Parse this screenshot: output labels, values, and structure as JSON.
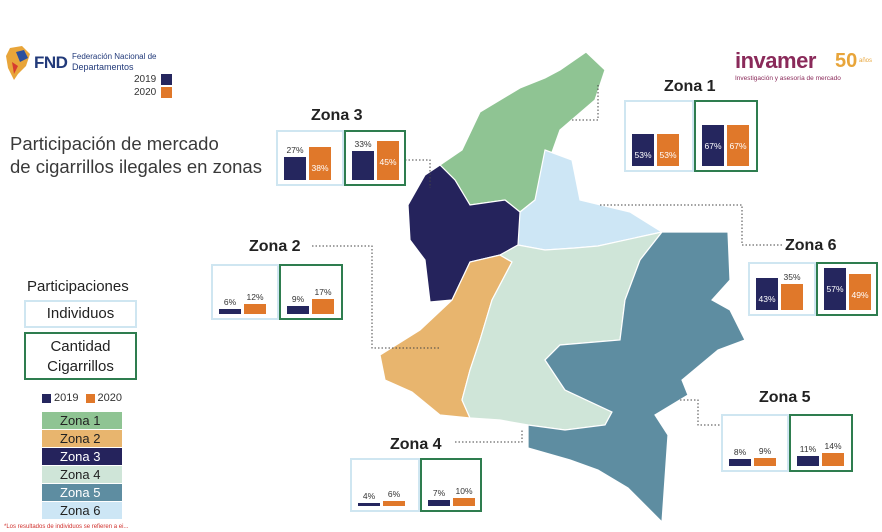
{
  "header": {
    "fnd_logo": "FND",
    "fnd_line1": "Federación Nacional de",
    "fnd_line2": "Departamentos",
    "year_2019": "2019",
    "year_2020": "2020",
    "invamer_logo": "invamer",
    "invamer_tagline": "Investigación y asesoría de mercado",
    "invamer_50": "50",
    "invamer_anos": "años"
  },
  "title_line1": "Participación de mercado",
  "title_line2": "de cigarrillos ilegales en zonas",
  "legend": {
    "heading": "Participaciones",
    "individuos": "Individuos",
    "cantidad_line1": "Cantidad",
    "cantidad_line2": "Cigarrillos",
    "year_2019": "2019",
    "year_2020": "2020",
    "zones": [
      "Zona 1",
      "Zona 2",
      "Zona 3",
      "Zona 4",
      "Zona 5",
      "Zona 6"
    ]
  },
  "colors": {
    "c2019": "#25265e",
    "c2020": "#e0782a",
    "zona1": "#8fc493",
    "zona2": "#e8b56e",
    "zona3": "#25235c",
    "zona4": "#cfe5d8",
    "zona5": "#5e8da1",
    "zona6": "#cde6f5"
  },
  "footnote": "*Los resultados de individuos se refieren a ei...",
  "chart_data": [
    {
      "type": "bar",
      "zone": "Zona 1",
      "metric": "Individuos",
      "categories": [
        "2019",
        "2020"
      ],
      "values": [
        53,
        53
      ],
      "labels": [
        "53%",
        "53%"
      ]
    },
    {
      "type": "bar",
      "zone": "Zona 1",
      "metric": "Cantidad Cigarrillos",
      "categories": [
        "2019",
        "2020"
      ],
      "values": [
        67,
        67
      ],
      "labels": [
        "67%",
        "67%"
      ]
    },
    {
      "type": "bar",
      "zone": "Zona 2",
      "metric": "Individuos",
      "categories": [
        "2019",
        "2020"
      ],
      "values": [
        6,
        12
      ],
      "labels": [
        "6%",
        "12%"
      ]
    },
    {
      "type": "bar",
      "zone": "Zona 2",
      "metric": "Cantidad Cigarrillos",
      "categories": [
        "2019",
        "2020"
      ],
      "values": [
        9,
        17
      ],
      "labels": [
        "9%",
        "17%"
      ]
    },
    {
      "type": "bar",
      "zone": "Zona 3",
      "metric": "Individuos",
      "categories": [
        "2019",
        "2020"
      ],
      "values": [
        27,
        38
      ],
      "labels": [
        "27%",
        "38%"
      ]
    },
    {
      "type": "bar",
      "zone": "Zona 3",
      "metric": "Cantidad Cigarrillos",
      "categories": [
        "2019",
        "2020"
      ],
      "values": [
        33,
        45
      ],
      "labels": [
        "33%",
        "45%"
      ]
    },
    {
      "type": "bar",
      "zone": "Zona 4",
      "metric": "Individuos",
      "categories": [
        "2019",
        "2020"
      ],
      "values": [
        4,
        6
      ],
      "labels": [
        "4%",
        "6%"
      ]
    },
    {
      "type": "bar",
      "zone": "Zona 4",
      "metric": "Cantidad Cigarrillos",
      "categories": [
        "2019",
        "2020"
      ],
      "values": [
        7,
        10
      ],
      "labels": [
        "7%",
        "10%"
      ]
    },
    {
      "type": "bar",
      "zone": "Zona 5",
      "metric": "Individuos",
      "categories": [
        "2019",
        "2020"
      ],
      "values": [
        8,
        9
      ],
      "labels": [
        "8%",
        "9%"
      ]
    },
    {
      "type": "bar",
      "zone": "Zona 5",
      "metric": "Cantidad Cigarrillos",
      "categories": [
        "2019",
        "2020"
      ],
      "values": [
        11,
        14
      ],
      "labels": [
        "11%",
        "14%"
      ]
    },
    {
      "type": "bar",
      "zone": "Zona 6",
      "metric": "Individuos",
      "categories": [
        "2019",
        "2020"
      ],
      "values": [
        43,
        35
      ],
      "labels": [
        "43%",
        "35%"
      ]
    },
    {
      "type": "bar",
      "zone": "Zona 6",
      "metric": "Cantidad Cigarrillos",
      "categories": [
        "2019",
        "2020"
      ],
      "values": [
        57,
        49
      ],
      "labels": [
        "57%",
        "49%"
      ]
    }
  ]
}
